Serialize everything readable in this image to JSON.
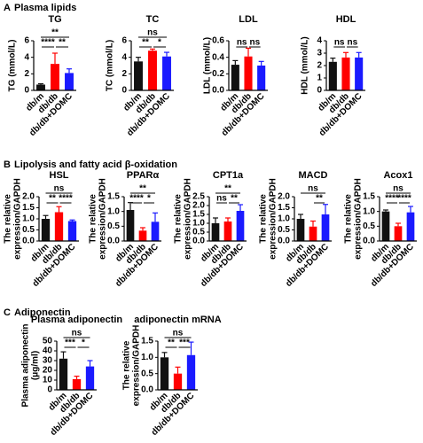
{
  "sections": [
    {
      "label": "A",
      "title": "Plasma lipids"
    },
    {
      "label": "B",
      "title": "Lipolysis and fatty acid β-oxidation"
    },
    {
      "label": "C",
      "title": "Adiponectin"
    }
  ],
  "chart_data": [
    {
      "type": "bar",
      "title": "TG",
      "ylabel": [
        "TG (mmol/L)"
      ],
      "categories": [
        "db/m",
        "db/db",
        "db/db+DOMC"
      ],
      "values": [
        0.7,
        3.2,
        2.1
      ],
      "errors": [
        0.1,
        1.3,
        0.5
      ],
      "colors": [
        "#111111",
        "#ff0000",
        "#1a1aff"
      ],
      "ylim": [
        0,
        6
      ],
      "yticks": [
        0,
        2,
        4,
        6
      ],
      "significance": [
        {
          "from": 0,
          "to": 2,
          "label": "**"
        },
        {
          "from": 0,
          "to": 1,
          "label": "****"
        },
        {
          "from": 1,
          "to": 2,
          "label": "**"
        }
      ]
    },
    {
      "type": "bar",
      "title": "TC",
      "ylabel": [
        "TC (mmol/L)"
      ],
      "categories": [
        "db/m",
        "db/db",
        "db/db+DOMC"
      ],
      "values": [
        3.5,
        4.8,
        4.1
      ],
      "errors": [
        0.5,
        0.2,
        0.5
      ],
      "colors": [
        "#111111",
        "#ff0000",
        "#1a1aff"
      ],
      "ylim": [
        0,
        6
      ],
      "yticks": [
        0,
        2,
        4,
        6
      ],
      "significance": [
        {
          "from": 0,
          "to": 2,
          "label": "ns"
        },
        {
          "from": 0,
          "to": 1,
          "label": "**"
        },
        {
          "from": 1,
          "to": 2,
          "label": "*"
        }
      ]
    },
    {
      "type": "bar",
      "title": "LDL",
      "ylabel": [
        "LDL (mmol/L)"
      ],
      "categories": [
        "db/m",
        "db/db",
        "db/db+DOMC"
      ],
      "values": [
        0.31,
        0.41,
        0.3
      ],
      "errors": [
        0.05,
        0.1,
        0.05
      ],
      "colors": [
        "#111111",
        "#ff0000",
        "#1a1aff"
      ],
      "ylim": [
        0,
        0.6
      ],
      "yticks": [
        {
          "value": 0,
          "label": "0.0"
        },
        0.2,
        0.4,
        0.6
      ],
      "significance": [
        {
          "from": 0,
          "to": 1,
          "label": "ns"
        },
        {
          "from": 1,
          "to": 2,
          "label": "ns"
        }
      ]
    },
    {
      "type": "bar",
      "title": "HDL",
      "ylabel": [
        "HDL (mmol/L)"
      ],
      "categories": [
        "db/m",
        "db/db",
        "db/db+DOMC"
      ],
      "values": [
        2.3,
        2.65,
        2.65
      ],
      "errors": [
        0.3,
        0.4,
        0.4
      ],
      "colors": [
        "#111111",
        "#ff0000",
        "#1a1aff"
      ],
      "ylim": [
        0,
        4
      ],
      "yticks": [
        0,
        1,
        2,
        3,
        4
      ],
      "significance": [
        {
          "from": 0,
          "to": 1,
          "label": "ns"
        },
        {
          "from": 1,
          "to": 2,
          "label": "ns"
        }
      ]
    },
    {
      "type": "bar",
      "title": "HSL",
      "ylabel": [
        "The relative",
        "expression/GAPDH"
      ],
      "categories": [
        "db/m",
        "db/db",
        "db/db+DOMC"
      ],
      "values": [
        1.0,
        1.3,
        0.9
      ],
      "errors": [
        0.15,
        0.25,
        0.05
      ],
      "colors": [
        "#111111",
        "#ff0000",
        "#1a1aff"
      ],
      "ylim": [
        0,
        2
      ],
      "yticks": [
        {
          "value": 0,
          "label": "0.0"
        },
        0.5,
        {
          "value": 1,
          "label": "1.0"
        },
        1.5,
        {
          "value": 2,
          "label": "2.0"
        }
      ],
      "significance": [
        {
          "from": 0,
          "to": 2,
          "label": "ns"
        },
        {
          "from": 0,
          "to": 1,
          "label": "**"
        },
        {
          "from": 1,
          "to": 2,
          "label": "****"
        }
      ]
    },
    {
      "type": "bar",
      "title": "PPARα",
      "ylabel": [
        "The relative",
        "expression/GAPDH"
      ],
      "categories": [
        "db/m",
        "db/db",
        "db/db+DOMC"
      ],
      "values": [
        1.05,
        0.35,
        0.65
      ],
      "errors": [
        0.25,
        0.1,
        0.3
      ],
      "colors": [
        "#111111",
        "#ff0000",
        "#1a1aff"
      ],
      "ylim": [
        0,
        1.5
      ],
      "yticks": [
        {
          "value": 0,
          "label": "0.0"
        },
        0.5,
        {
          "value": 1,
          "label": "1.0"
        },
        1.5
      ],
      "significance": [
        {
          "from": 0,
          "to": 2,
          "label": "**"
        },
        {
          "from": 0,
          "to": 1,
          "label": "****"
        },
        {
          "from": 1,
          "to": 2,
          "label": "*"
        }
      ]
    },
    {
      "type": "bar",
      "title": "CPT1a",
      "ylabel": [
        "The relative",
        "expression/GAPDH"
      ],
      "categories": [
        "db/m",
        "db/db",
        "db/db+DOMC"
      ],
      "values": [
        1.0,
        1.1,
        1.7
      ],
      "errors": [
        0.3,
        0.2,
        0.35
      ],
      "colors": [
        "#111111",
        "#ff0000",
        "#1a1aff"
      ],
      "ylim": [
        0,
        2.5
      ],
      "yticks": [
        {
          "value": 0,
          "label": "0.0"
        },
        0.5,
        {
          "value": 1,
          "label": "1.0"
        },
        1.5,
        {
          "value": 2,
          "label": "2.0"
        },
        2.5
      ],
      "significance": [
        {
          "from": 0,
          "to": 2,
          "label": "**"
        },
        {
          "from": 0,
          "to": 1,
          "label": "ns"
        },
        {
          "from": 1,
          "to": 2,
          "label": "**"
        }
      ]
    },
    {
      "type": "bar",
      "title": "MACD",
      "ylabel": [
        "The relative",
        "expression/GAPDH"
      ],
      "categories": [
        "db/m",
        "db/db",
        "db/db+DOMC"
      ],
      "values": [
        1.0,
        0.65,
        1.2
      ],
      "errors": [
        0.2,
        0.25,
        0.45
      ],
      "colors": [
        "#111111",
        "#ff0000",
        "#1a1aff"
      ],
      "ylim": [
        0,
        2
      ],
      "yticks": [
        {
          "value": 0,
          "label": "0.0"
        },
        0.5,
        {
          "value": 1,
          "label": "1.0"
        },
        1.5,
        {
          "value": 2,
          "label": "2.0"
        }
      ],
      "significance": [
        {
          "from": 0,
          "to": 2,
          "label": "ns"
        },
        {
          "from": 1,
          "to": 2,
          "label": "**"
        }
      ]
    },
    {
      "type": "bar",
      "title": "Acox1",
      "ylabel": [
        "The relative",
        "expression/GAPDH"
      ],
      "categories": [
        "db/m",
        "db/db",
        "db/db+DOMC"
      ],
      "values": [
        1.0,
        0.5,
        0.97
      ],
      "errors": [
        0.05,
        0.1,
        0.2
      ],
      "colors": [
        "#111111",
        "#ff0000",
        "#1a1aff"
      ],
      "ylim": [
        0,
        1.5
      ],
      "yticks": [
        {
          "value": 0,
          "label": "0.0"
        },
        0.5,
        {
          "value": 1,
          "label": "1.0"
        },
        1.5
      ],
      "significance": [
        {
          "from": 0,
          "to": 2,
          "label": "ns"
        },
        {
          "from": 0,
          "to": 1,
          "label": "****"
        },
        {
          "from": 1,
          "to": 2,
          "label": "****"
        }
      ]
    },
    {
      "type": "bar",
      "title": "Plasma adiponectin",
      "ylabel": [
        "Plasma adiponectin",
        "(μg/ml)"
      ],
      "categories": [
        "db/m",
        "db/db",
        "db/db+DOMC"
      ],
      "values": [
        32,
        11,
        24
      ],
      "errors": [
        7,
        3,
        6
      ],
      "colors": [
        "#111111",
        "#ff0000",
        "#1a1aff"
      ],
      "ylim": [
        0,
        50
      ],
      "yticks": [
        0,
        10,
        20,
        30,
        40,
        50
      ],
      "significance": [
        {
          "from": 0,
          "to": 2,
          "label": "ns"
        },
        {
          "from": 0,
          "to": 1,
          "label": "***"
        },
        {
          "from": 1,
          "to": 2,
          "label": "*"
        }
      ]
    },
    {
      "type": "bar",
      "title": "adiponectin mRNA",
      "ylabel": [
        "The relative",
        "expression/GAPDH"
      ],
      "categories": [
        "db/m",
        "db/db",
        "db/db+DOMC"
      ],
      "values": [
        1.0,
        0.5,
        1.07
      ],
      "errors": [
        0.15,
        0.2,
        0.4
      ],
      "colors": [
        "#111111",
        "#ff0000",
        "#1a1aff"
      ],
      "ylim": [
        0,
        1.5
      ],
      "yticks": [
        {
          "value": 0,
          "label": "0.0"
        },
        0.5,
        {
          "value": 1,
          "label": "1.0"
        },
        1.5
      ],
      "significance": [
        {
          "from": 0,
          "to": 2,
          "label": "ns"
        },
        {
          "from": 0,
          "to": 1,
          "label": "**"
        },
        {
          "from": 1,
          "to": 2,
          "label": "***"
        }
      ]
    }
  ]
}
